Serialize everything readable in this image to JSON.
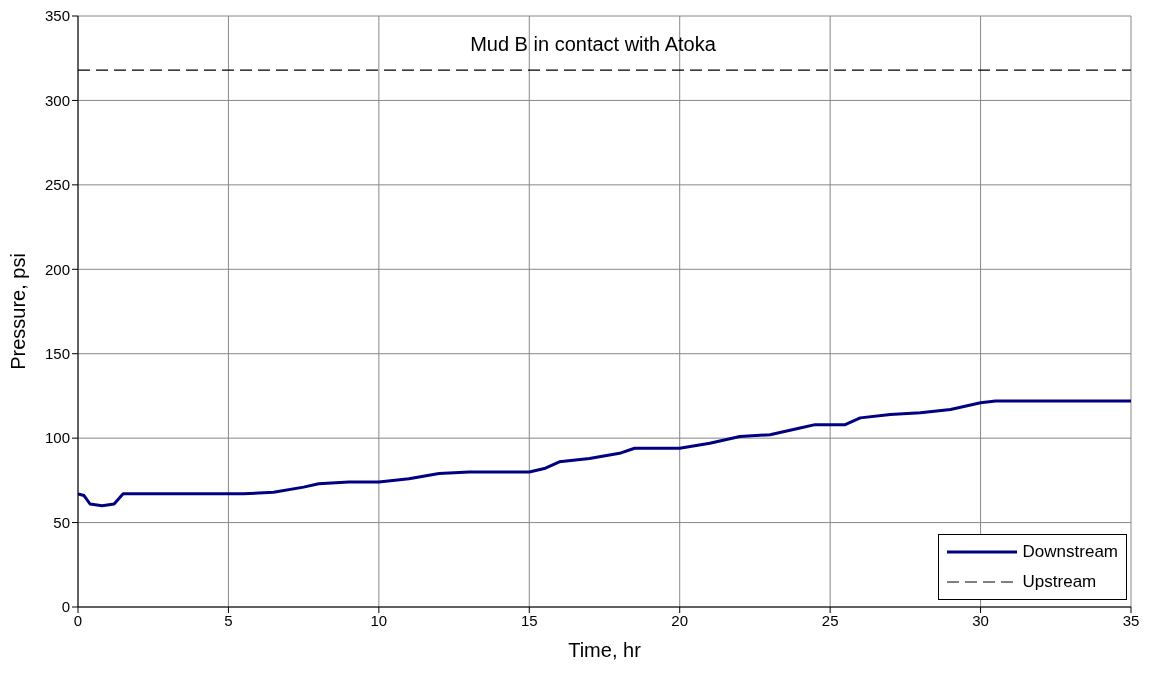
{
  "chart_data": {
    "type": "line",
    "title": "Mud B in contact with Atoka",
    "xlabel": "Time, hr",
    "ylabel": "Pressure, psi",
    "xlim": [
      0,
      35
    ],
    "xticks": [
      0,
      5,
      10,
      15,
      20,
      25,
      30,
      35
    ],
    "ylim": [
      0,
      350
    ],
    "yticks": [
      0,
      50,
      100,
      150,
      200,
      250,
      300,
      350
    ],
    "grid": true,
    "legend": "bottom right",
    "marker": "none",
    "series": [
      {
        "name": "Downstream",
        "color": "#000080",
        "line_style": "solid",
        "x": [
          0,
          0.2,
          0.4,
          0.8,
          1.2,
          1.5,
          3,
          5.5,
          6.5,
          7.5,
          8,
          9,
          10,
          11,
          12,
          13,
          15,
          15.5,
          16,
          17,
          18,
          18.5,
          20,
          21,
          22,
          23,
          24,
          24.5,
          25.5,
          26,
          27,
          28,
          29,
          30,
          30.5,
          35
        ],
        "values": [
          67,
          66,
          61,
          60,
          61,
          67,
          67,
          67,
          68,
          71,
          73,
          74,
          74,
          76,
          79,
          80,
          80,
          82,
          86,
          88,
          91,
          94,
          94,
          97,
          101,
          102,
          106,
          108,
          108,
          112,
          114,
          115,
          117,
          121,
          122,
          122
        ]
      },
      {
        "name": "Upstream",
        "color": "#000000",
        "line_style": "dashed",
        "x": [
          0,
          5,
          10,
          15,
          20,
          25,
          30,
          35
        ],
        "values": [
          318,
          318,
          318,
          318,
          318,
          318,
          318,
          318
        ]
      }
    ]
  }
}
